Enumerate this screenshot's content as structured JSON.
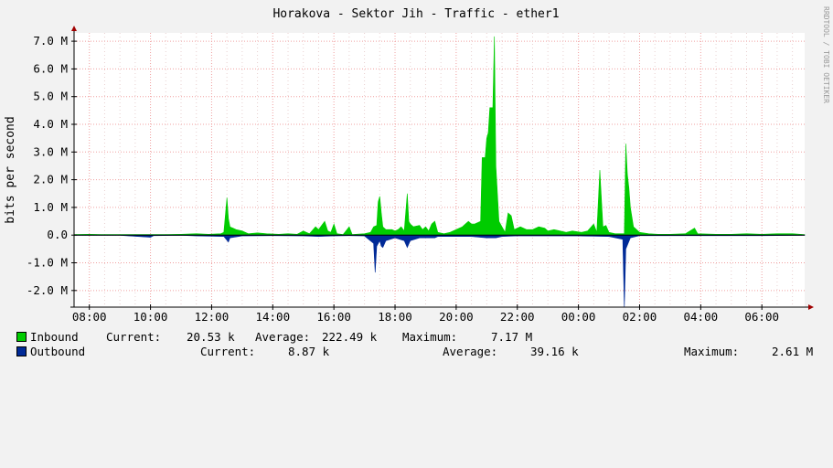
{
  "chart_data": {
    "type": "area",
    "title": "Horakova - Sektor Jih - Traffic - ether1",
    "ylabel": "bits per second",
    "watermark": "RRDTOOL / TOBI OETIKER",
    "ylim": [
      -2.6,
      7.3
    ],
    "yticks": [
      {
        "value": 7,
        "label": "7.0 M"
      },
      {
        "value": 6,
        "label": "6.0 M"
      },
      {
        "value": 5,
        "label": "5.0 M"
      },
      {
        "value": 4,
        "label": "4.0 M"
      },
      {
        "value": 3,
        "label": "3.0 M"
      },
      {
        "value": 2,
        "label": "2.0 M"
      },
      {
        "value": 1,
        "label": "1.0 M"
      },
      {
        "value": 0,
        "label": "0.0"
      },
      {
        "value": -1,
        "label": "-1.0 M"
      },
      {
        "value": -2,
        "label": "-2.0 M"
      }
    ],
    "xlim": [
      7.5,
      31.4
    ],
    "xticks": [
      {
        "value": 8,
        "label": "08:00"
      },
      {
        "value": 10,
        "label": "10:00"
      },
      {
        "value": 12,
        "label": "12:00"
      },
      {
        "value": 14,
        "label": "14:00"
      },
      {
        "value": 16,
        "label": "16:00"
      },
      {
        "value": 18,
        "label": "18:00"
      },
      {
        "value": 20,
        "label": "20:00"
      },
      {
        "value": 22,
        "label": "22:00"
      },
      {
        "value": 24,
        "label": "00:00"
      },
      {
        "value": 26,
        "label": "02:00"
      },
      {
        "value": 28,
        "label": "04:00"
      },
      {
        "value": 30,
        "label": "06:00"
      }
    ],
    "grid": true,
    "legend_position": "bottom",
    "series": [
      {
        "name": "Inbound",
        "color": "#00cc00",
        "current": "20.53 k",
        "average": "222.49 k",
        "maximum": "7.17 M",
        "points": [
          [
            7.5,
            0.02
          ],
          [
            8.0,
            0.03
          ],
          [
            8.4,
            0.02
          ],
          [
            9.0,
            0.02
          ],
          [
            9.6,
            0.02
          ],
          [
            10.0,
            0.02
          ],
          [
            10.5,
            0.02
          ],
          [
            11.0,
            0.03
          ],
          [
            11.5,
            0.05
          ],
          [
            11.9,
            0.03
          ],
          [
            12.3,
            0.05
          ],
          [
            12.4,
            0.1
          ],
          [
            12.5,
            1.35
          ],
          [
            12.55,
            0.6
          ],
          [
            12.6,
            0.3
          ],
          [
            12.8,
            0.2
          ],
          [
            13.0,
            0.15
          ],
          [
            13.2,
            0.05
          ],
          [
            13.5,
            0.08
          ],
          [
            13.8,
            0.05
          ],
          [
            14.2,
            0.03
          ],
          [
            14.5,
            0.05
          ],
          [
            14.8,
            0.03
          ],
          [
            15.0,
            0.15
          ],
          [
            15.2,
            0.05
          ],
          [
            15.4,
            0.3
          ],
          [
            15.5,
            0.2
          ],
          [
            15.6,
            0.35
          ],
          [
            15.7,
            0.5
          ],
          [
            15.8,
            0.15
          ],
          [
            15.9,
            0.1
          ],
          [
            16.0,
            0.4
          ],
          [
            16.1,
            0.05
          ],
          [
            16.3,
            0.02
          ],
          [
            16.5,
            0.3
          ],
          [
            16.6,
            0.02
          ],
          [
            17.0,
            0.05
          ],
          [
            17.2,
            0.1
          ],
          [
            17.3,
            0.3
          ],
          [
            17.4,
            0.35
          ],
          [
            17.45,
            1.2
          ],
          [
            17.5,
            1.4
          ],
          [
            17.55,
            0.8
          ],
          [
            17.6,
            0.3
          ],
          [
            17.7,
            0.2
          ],
          [
            17.9,
            0.2
          ],
          [
            18.0,
            0.15
          ],
          [
            18.1,
            0.2
          ],
          [
            18.2,
            0.3
          ],
          [
            18.3,
            0.15
          ],
          [
            18.4,
            1.5
          ],
          [
            18.45,
            0.5
          ],
          [
            18.5,
            0.4
          ],
          [
            18.6,
            0.3
          ],
          [
            18.8,
            0.35
          ],
          [
            18.9,
            0.2
          ],
          [
            19.0,
            0.3
          ],
          [
            19.1,
            0.15
          ],
          [
            19.2,
            0.4
          ],
          [
            19.3,
            0.5
          ],
          [
            19.4,
            0.1
          ],
          [
            19.6,
            0.05
          ],
          [
            19.8,
            0.1
          ],
          [
            20.0,
            0.2
          ],
          [
            20.2,
            0.3
          ],
          [
            20.4,
            0.5
          ],
          [
            20.5,
            0.4
          ],
          [
            20.6,
            0.4
          ],
          [
            20.8,
            0.5
          ],
          [
            20.85,
            2.8
          ],
          [
            20.95,
            2.8
          ],
          [
            21.0,
            3.5
          ],
          [
            21.05,
            3.7
          ],
          [
            21.1,
            4.6
          ],
          [
            21.2,
            4.6
          ],
          [
            21.25,
            7.17
          ],
          [
            21.3,
            2.5
          ],
          [
            21.4,
            0.5
          ],
          [
            21.5,
            0.3
          ],
          [
            21.6,
            0.1
          ],
          [
            21.7,
            0.8
          ],
          [
            21.8,
            0.7
          ],
          [
            21.9,
            0.2
          ],
          [
            22.1,
            0.3
          ],
          [
            22.3,
            0.2
          ],
          [
            22.5,
            0.2
          ],
          [
            22.7,
            0.3
          ],
          [
            22.9,
            0.25
          ],
          [
            23.0,
            0.15
          ],
          [
            23.2,
            0.2
          ],
          [
            23.4,
            0.15
          ],
          [
            23.6,
            0.1
          ],
          [
            23.8,
            0.15
          ],
          [
            24.1,
            0.1
          ],
          [
            24.3,
            0.15
          ],
          [
            24.5,
            0.4
          ],
          [
            24.6,
            0.1
          ],
          [
            24.7,
            2.35
          ],
          [
            24.8,
            0.3
          ],
          [
            24.9,
            0.35
          ],
          [
            25.0,
            0.1
          ],
          [
            25.2,
            0.05
          ],
          [
            25.5,
            0.05
          ],
          [
            25.55,
            3.3
          ],
          [
            25.6,
            2.2
          ],
          [
            25.65,
            1.7
          ],
          [
            25.7,
            1.0
          ],
          [
            25.8,
            0.3
          ],
          [
            26.0,
            0.1
          ],
          [
            26.3,
            0.05
          ],
          [
            26.6,
            0.03
          ],
          [
            27.0,
            0.03
          ],
          [
            27.5,
            0.05
          ],
          [
            27.8,
            0.25
          ],
          [
            27.9,
            0.05
          ],
          [
            28.5,
            0.03
          ],
          [
            29.0,
            0.03
          ],
          [
            29.5,
            0.05
          ],
          [
            30.0,
            0.03
          ],
          [
            30.5,
            0.05
          ],
          [
            31.0,
            0.05
          ],
          [
            31.4,
            0.02
          ]
        ]
      },
      {
        "name": "Outbound",
        "color": "#002a97",
        "current": "8.87 k",
        "average": "39.16 k",
        "maximum": "2.61 M",
        "points": [
          [
            7.5,
            -0.01
          ],
          [
            9.0,
            -0.01
          ],
          [
            10.0,
            -0.08
          ],
          [
            10.1,
            -0.02
          ],
          [
            11.0,
            -0.01
          ],
          [
            11.5,
            -0.03
          ],
          [
            12.4,
            -0.05
          ],
          [
            12.55,
            -0.25
          ],
          [
            12.6,
            -0.1
          ],
          [
            13.0,
            -0.03
          ],
          [
            14.0,
            -0.02
          ],
          [
            15.0,
            -0.03
          ],
          [
            15.5,
            -0.05
          ],
          [
            16.0,
            -0.03
          ],
          [
            16.5,
            -0.02
          ],
          [
            17.0,
            -0.03
          ],
          [
            17.3,
            -0.3
          ],
          [
            17.35,
            -1.35
          ],
          [
            17.4,
            -0.4
          ],
          [
            17.5,
            -0.2
          ],
          [
            17.55,
            -0.4
          ],
          [
            17.6,
            -0.45
          ],
          [
            17.7,
            -0.2
          ],
          [
            18.0,
            -0.1
          ],
          [
            18.3,
            -0.2
          ],
          [
            18.4,
            -0.45
          ],
          [
            18.5,
            -0.2
          ],
          [
            18.8,
            -0.1
          ],
          [
            19.3,
            -0.1
          ],
          [
            19.4,
            -0.05
          ],
          [
            20.0,
            -0.05
          ],
          [
            20.5,
            -0.05
          ],
          [
            21.0,
            -0.1
          ],
          [
            21.3,
            -0.1
          ],
          [
            21.5,
            -0.05
          ],
          [
            22.0,
            -0.03
          ],
          [
            23.0,
            -0.03
          ],
          [
            24.0,
            -0.03
          ],
          [
            25.0,
            -0.05
          ],
          [
            25.45,
            -0.15
          ],
          [
            25.5,
            -2.61
          ],
          [
            25.55,
            -0.5
          ],
          [
            25.7,
            -0.1
          ],
          [
            26.0,
            -0.02
          ],
          [
            28.0,
            -0.02
          ],
          [
            29.0,
            -0.02
          ],
          [
            30.0,
            -0.02
          ],
          [
            31.4,
            -0.01
          ]
        ]
      }
    ]
  },
  "legend": {
    "labels": {
      "current": "Current:",
      "average": "Average:",
      "maximum": "Maximum:"
    }
  }
}
